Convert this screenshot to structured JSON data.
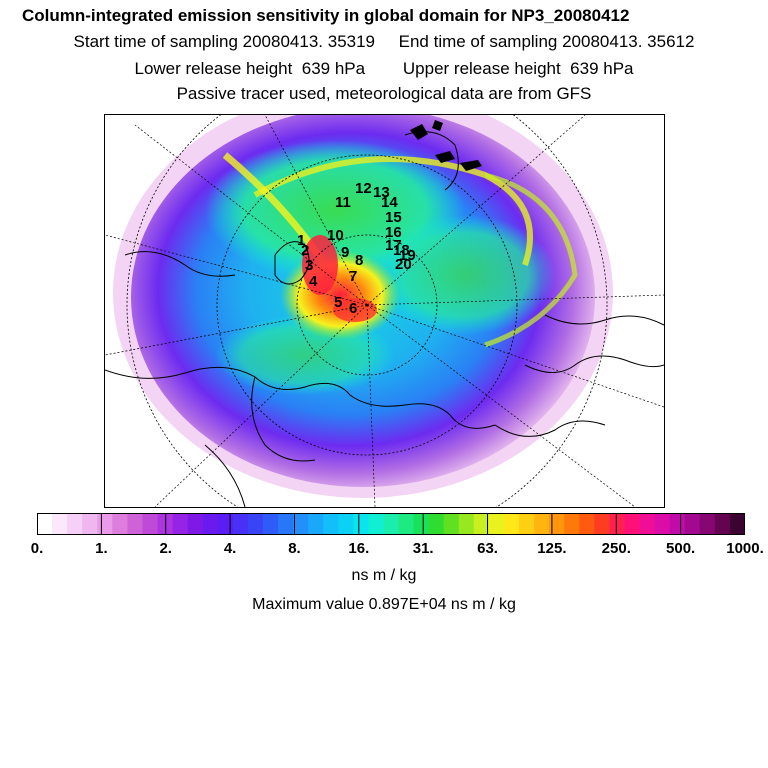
{
  "header": {
    "title": "Column-integrated emission sensitivity in global domain for NP3_20080412",
    "line2": "Start time of sampling 20080413. 35319     End time of sampling 20080413. 35612",
    "line3": "Lower release height  639 hPa        Upper release height  639 hPa",
    "line4": "Passive tracer used, meteorological data are from GFS"
  },
  "map": {
    "markers": [
      "1",
      "2",
      "3",
      "4",
      "5",
      "6",
      "7",
      "8",
      "9",
      "10",
      "11",
      "12",
      "13",
      "14",
      "15",
      "16",
      "17",
      "18",
      "19",
      "20"
    ]
  },
  "colorbar": {
    "colors": [
      "#ffffff",
      "#fbe8fb",
      "#f6d0f6",
      "#f0b6f0",
      "#e99ae9",
      "#dd7ddd",
      "#d062d8",
      "#c04ad8",
      "#ad35df",
      "#9524e6",
      "#7f1ae6",
      "#6a1aee",
      "#5a1ef4",
      "#4830f6",
      "#3a44f7",
      "#2f5cf8",
      "#2877f9",
      "#2290fa",
      "#1aa8fb",
      "#12bffb",
      "#0bd2f5",
      "#09e5ee",
      "#10efd4",
      "#1aeeaa",
      "#1eea80",
      "#18e25a",
      "#30dc30",
      "#60e020",
      "#98e820",
      "#c8f020",
      "#e9f21e",
      "#ffe81a",
      "#ffcf14",
      "#ffb410",
      "#ff960c",
      "#ff780a",
      "#ff5a10",
      "#ff3c22",
      "#ff2050",
      "#ff1078",
      "#f00e96",
      "#dc0ca8",
      "#c20aa8",
      "#a20890",
      "#860672",
      "#640450",
      "#3c0230"
    ],
    "labels": [
      "0.",
      "1.",
      "2.",
      "4.",
      "8.",
      "16.",
      "31.",
      "63.",
      "125.",
      "250.",
      "500.",
      "1000."
    ],
    "units": "ns m / kg"
  },
  "footer": {
    "max_value": "Maximum value  0.897E+04 ns m / kg"
  }
}
